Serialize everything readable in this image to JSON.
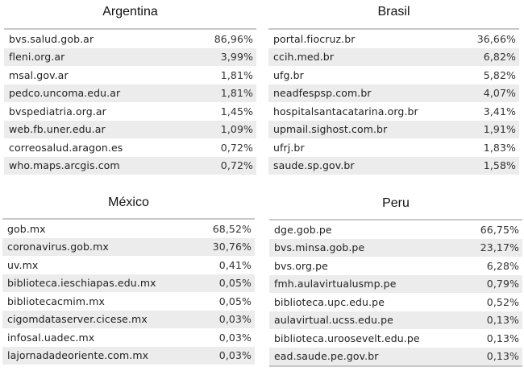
{
  "panels": {
    "argentina": {
      "title": "Argentina",
      "rows": [
        {
          "domain": "bvs.salud.gob.ar",
          "pct": "86,96%"
        },
        {
          "domain": "fleni.org.ar",
          "pct": "3,99%"
        },
        {
          "domain": "msal.gov.ar",
          "pct": "1,81%"
        },
        {
          "domain": "pedco.uncoma.edu.ar",
          "pct": "1,81%"
        },
        {
          "domain": "bvspediatria.org.ar",
          "pct": "1,45%"
        },
        {
          "domain": "web.fb.uner.edu.ar",
          "pct": "1,09%"
        },
        {
          "domain": "correosalud.aragon.es",
          "pct": "0,72%"
        },
        {
          "domain": "who.maps.arcgis.com",
          "pct": "0,72%"
        }
      ]
    },
    "brasil": {
      "title": "Brasil",
      "rows": [
        {
          "domain": "portal.fiocruz.br",
          "pct": "36,66%"
        },
        {
          "domain": "ccih.med.br",
          "pct": "6,82%"
        },
        {
          "domain": "ufg.br",
          "pct": "5,82%"
        },
        {
          "domain": "neadfespsp.com.br",
          "pct": "4,07%"
        },
        {
          "domain": "hospitalsantacatarina.org.br",
          "pct": "3,41%"
        },
        {
          "domain": "upmail.sighost.com.br",
          "pct": "1,91%"
        },
        {
          "domain": "ufrj.br",
          "pct": "1,83%"
        },
        {
          "domain": "saude.sp.gov.br",
          "pct": "1,58%"
        }
      ]
    },
    "mexico": {
      "title": "México",
      "rows": [
        {
          "domain": "gob.mx",
          "pct": "68,52%"
        },
        {
          "domain": "coronavirus.gob.mx",
          "pct": "30,76%"
        },
        {
          "domain": "uv.mx",
          "pct": "0,41%"
        },
        {
          "domain": "biblioteca.ieschiapas.edu.mx",
          "pct": "0,05%"
        },
        {
          "domain": "bibliotecacmim.mx",
          "pct": "0,05%"
        },
        {
          "domain": "cigomdataserver.cicese.mx",
          "pct": "0,03%"
        },
        {
          "domain": "infosal.uadec.mx",
          "pct": "0,03%"
        },
        {
          "domain": "lajornadadeoriente.com.mx",
          "pct": "0,03%"
        }
      ]
    },
    "peru": {
      "title": "Peru",
      "rows": [
        {
          "domain": "dge.gob.pe",
          "pct": "66,75%"
        },
        {
          "domain": "bvs.minsa.gob.pe",
          "pct": "23,17%"
        },
        {
          "domain": "bvs.org.pe",
          "pct": "6,28%"
        },
        {
          "domain": "fmh.aulavirtualusmp.pe",
          "pct": "0,79%"
        },
        {
          "domain": "biblioteca.upc.edu.pe",
          "pct": "0,52%"
        },
        {
          "domain": "aulavirtual.ucss.edu.pe",
          "pct": "0,13%"
        },
        {
          "domain": "biblioteca.uroosevelt.edu.pe",
          "pct": "0,13%"
        },
        {
          "domain": "ead.saude.pe.gov.br",
          "pct": "0,13%"
        }
      ]
    }
  },
  "colors": {
    "row_stripe": "#ececec",
    "divider": "#c8c8c8",
    "text": "#222222"
  }
}
